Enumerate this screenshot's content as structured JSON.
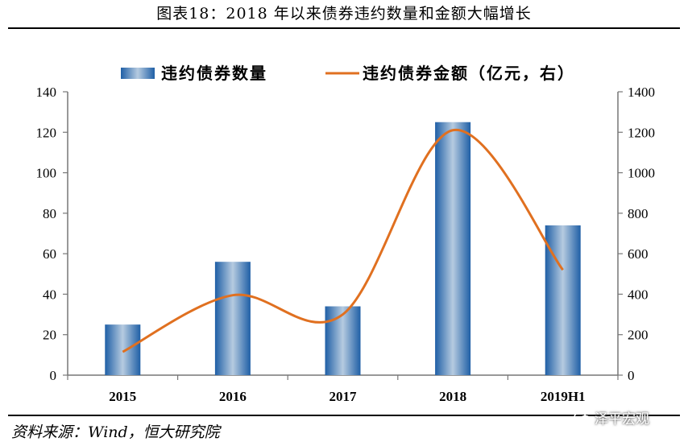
{
  "figure_title": "图表18：2018 年以来债券违约数量和金额大幅增长",
  "source_note": "资料来源：Wind，恒大研究院",
  "watermark": "泽平宏观",
  "chart_data": {
    "type": "bar",
    "categories": [
      "2015",
      "2016",
      "2017",
      "2018",
      "2019H1"
    ],
    "series": [
      {
        "name": "违约债券数量",
        "type": "bar",
        "axis": "left",
        "values": [
          25,
          56,
          34,
          125,
          74
        ],
        "color": "#2f6db0"
      },
      {
        "name": "违约债券金额（亿元，右）",
        "type": "line",
        "axis": "right",
        "values": [
          115,
          395,
          300,
          1210,
          520
        ],
        "color": "#e07020"
      }
    ],
    "y_left": {
      "min": 0,
      "max": 140,
      "ticks": [
        "0",
        "20",
        "40",
        "60",
        "80",
        "100",
        "120",
        "140"
      ]
    },
    "y_right": {
      "min": 0,
      "max": 1400,
      "ticks": [
        "0",
        "200",
        "400",
        "600",
        "800",
        "1000",
        "1200",
        "1400"
      ]
    },
    "legend_position": "top",
    "grid": false
  }
}
